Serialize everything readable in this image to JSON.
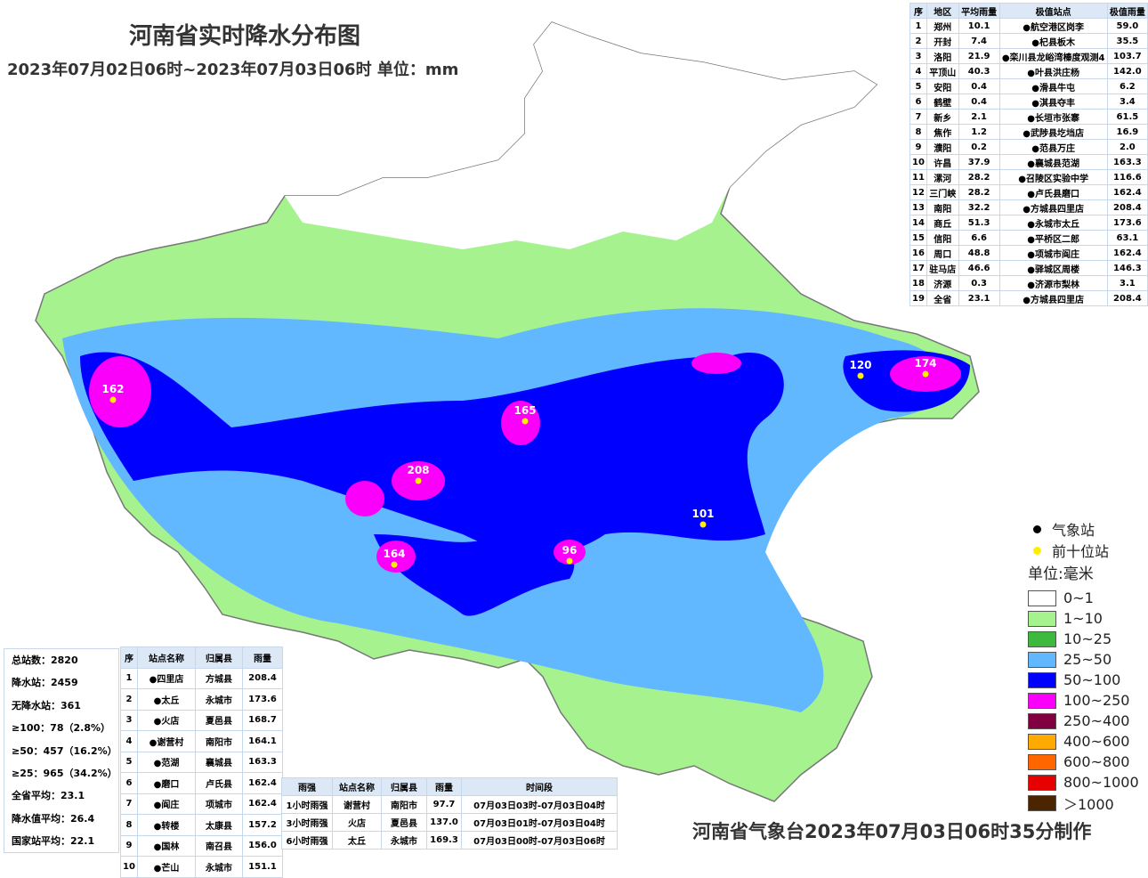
{
  "header": {
    "title": "河南省实时降水分布图",
    "subtitle": "2023年07月02日06时~2023年07月03日06时 单位：mm"
  },
  "region_table": {
    "columns": [
      "序",
      "地区",
      "平均雨量",
      "极值站点",
      "极值雨量"
    ],
    "rows": [
      [
        "1",
        "郑州",
        "10.1",
        "●航空港区岗李",
        "59.0"
      ],
      [
        "2",
        "开封",
        "7.4",
        "●杞县板木",
        "35.5"
      ],
      [
        "3",
        "洛阳",
        "21.9",
        "●栾川县龙峪湾榛度观测4",
        "103.7"
      ],
      [
        "4",
        "平顶山",
        "40.3",
        "●叶县洪庄杨",
        "142.0"
      ],
      [
        "5",
        "安阳",
        "0.4",
        "●滑县牛屯",
        "6.2"
      ],
      [
        "6",
        "鹤壁",
        "0.4",
        "●淇县夺丰",
        "3.4"
      ],
      [
        "7",
        "新乡",
        "2.1",
        "●长垣市张寨",
        "61.5"
      ],
      [
        "8",
        "焦作",
        "1.2",
        "●武陟县圪垱店",
        "16.9"
      ],
      [
        "9",
        "濮阳",
        "0.2",
        "●范县万庄",
        "2.0"
      ],
      [
        "10",
        "许昌",
        "37.9",
        "●襄城县范湖",
        "163.3"
      ],
      [
        "11",
        "漯河",
        "28.2",
        "●召陵区实验中学",
        "116.6"
      ],
      [
        "12",
        "三门峡",
        "28.2",
        "●卢氏县磨口",
        "162.4"
      ],
      [
        "13",
        "南阳",
        "32.2",
        "●方城县四里店",
        "208.4"
      ],
      [
        "14",
        "商丘",
        "51.3",
        "●永城市太丘",
        "173.6"
      ],
      [
        "15",
        "信阳",
        "6.6",
        "●平桥区二郎",
        "63.1"
      ],
      [
        "16",
        "周口",
        "48.8",
        "●项城市阎庄",
        "162.4"
      ],
      [
        "17",
        "驻马店",
        "46.6",
        "●驿城区周楼",
        "146.3"
      ],
      [
        "18",
        "济源",
        "0.3",
        "●济源市梨林",
        "3.1"
      ],
      [
        "19",
        "全省",
        "23.1",
        "●方城县四里店",
        "208.4"
      ]
    ]
  },
  "stats": [
    "总站数：2820",
    "降水站：2459",
    "无降水站：361",
    "≥100：78（2.8%）",
    "≥50：457（16.2%）",
    "≥25：965（34.2%）",
    "全省平均：23.1",
    "降水值平均：26.4",
    "国家站平均：22.1"
  ],
  "top_table": {
    "columns": [
      "序",
      "站点名称",
      "归属县",
      "雨量"
    ],
    "rows": [
      [
        "1",
        "●四里店",
        "方城县",
        "208.4"
      ],
      [
        "2",
        "●太丘",
        "永城市",
        "173.6"
      ],
      [
        "3",
        "●火店",
        "夏邑县",
        "168.7"
      ],
      [
        "4",
        "●谢营村",
        "南阳市",
        "164.1"
      ],
      [
        "5",
        "●范湖",
        "襄城县",
        "163.3"
      ],
      [
        "6",
        "●磨口",
        "卢氏县",
        "162.4"
      ],
      [
        "7",
        "●阎庄",
        "项城市",
        "162.4"
      ],
      [
        "8",
        "●转楼",
        "太康县",
        "157.2"
      ],
      [
        "9",
        "●国林",
        "南召县",
        "156.0"
      ],
      [
        "10",
        "●芒山",
        "永城市",
        "151.1"
      ]
    ]
  },
  "intensity_table": {
    "columns": [
      "雨强",
      "站点名称",
      "归属县",
      "雨量",
      "时间段"
    ],
    "rows": [
      [
        "1小时雨强",
        "谢营村",
        "南阳市",
        "97.7",
        "07月03日03时-07月03日04时"
      ],
      [
        "3小时雨强",
        "火店",
        "夏邑县",
        "137.0",
        "07月03日01时-07月03日04时"
      ],
      [
        "6小时雨强",
        "太丘",
        "永城市",
        "169.3",
        "07月03日00时-07月03日06时"
      ]
    ]
  },
  "legend": {
    "station": "气象站",
    "top_station": "前十位站",
    "unit": "单位:毫米",
    "items": [
      {
        "label": "0~1",
        "color": "#ffffff"
      },
      {
        "label": "1~10",
        "color": "#a6f28f"
      },
      {
        "label": "10~25",
        "color": "#3dba3d"
      },
      {
        "label": "25~50",
        "color": "#61b8ff"
      },
      {
        "label": "50~100",
        "color": "#0000ff"
      },
      {
        "label": "100~250",
        "color": "#fa00fa"
      },
      {
        "label": "250~400",
        "color": "#800040"
      },
      {
        "label": "400~600",
        "color": "#ffaa00"
      },
      {
        "label": "600~800",
        "color": "#ff6600"
      },
      {
        "label": "800~1000",
        "color": "#e60000"
      },
      {
        "label": "＞1000",
        "color": "#4a2500"
      }
    ]
  },
  "map_labels": [
    "208",
    "174",
    "164",
    "162",
    "165",
    "120",
    "101",
    "96"
  ],
  "footer": "河南省气象台2023年07月03日06时35分制作"
}
